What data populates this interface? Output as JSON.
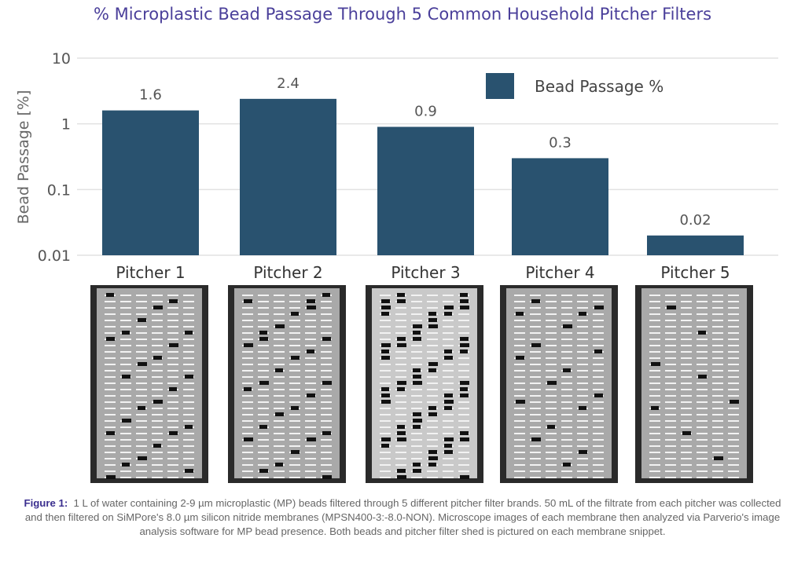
{
  "chart_data": {
    "type": "bar",
    "title": "% Microplastic Bead Passage Through 5 Common Household Pitcher Filters",
    "ylabel": "Bead Passage [%]",
    "xlabel": "",
    "yscale": "log",
    "ylim": [
      0.01,
      10
    ],
    "yticks": [
      "10",
      "1",
      "0.1",
      "0.01"
    ],
    "grid": true,
    "legend": {
      "placement": "top-right",
      "entries": [
        "Bead Passage %"
      ]
    },
    "categories": [
      "Pitcher 1",
      "Pitcher 2",
      "Pitcher 3",
      "Pitcher 4",
      "Pitcher 5"
    ],
    "series": [
      {
        "name": "Bead Passage %",
        "values": [
          1.6,
          2.4,
          0.9,
          0.3,
          0.02
        ],
        "labels": [
          "1.6",
          "2.4",
          "0.9",
          "0.3",
          "0.02"
        ],
        "color": "#29526f"
      }
    ]
  },
  "caption": {
    "label": "Figure 1:",
    "text": "1 L of water containing 2-9 µm microplastic (MP) beads filtered through 5 different pitcher filter brands. 50 mL of the filtrate from each pitcher was collected and then filtered on SiMPore's 8.0 µm silicon nitride membranes (MPSN400-3:-8.0-NON). Microscope images of each membrane then analyzed via Parverio's image analysis software for MP bead presence. Both beads and pitcher filter shed is pictured on each membrane snippet."
  },
  "colors": {
    "bar": "#29526f",
    "title": "#4a3f9a",
    "grid": "#e2e2e2"
  }
}
